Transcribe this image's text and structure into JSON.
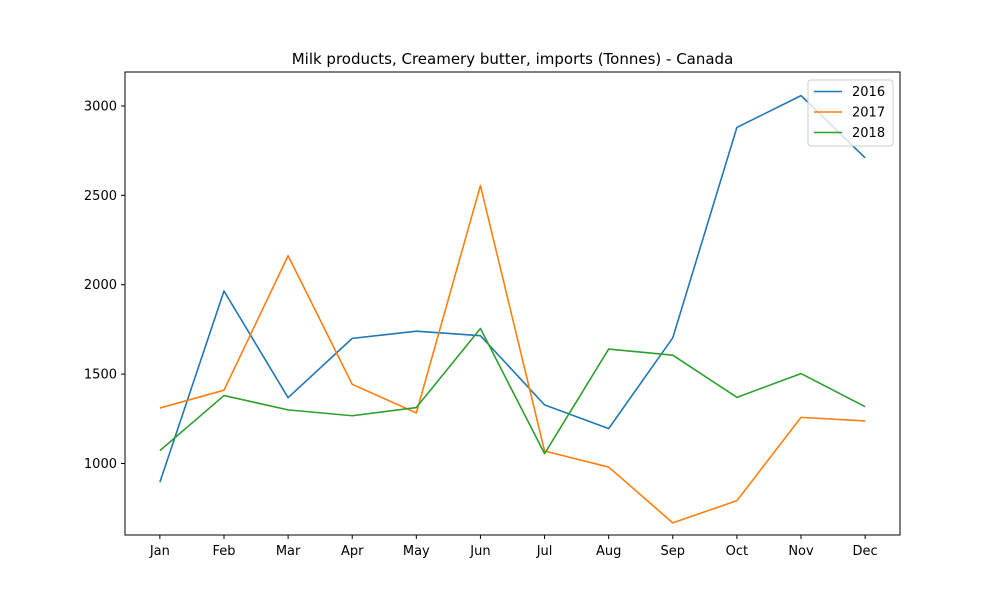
{
  "chart_data": {
    "type": "line",
    "title": "Milk products, Creamery butter, imports (Tonnes) - Canada",
    "xlabel": "",
    "ylabel": "",
    "categories": [
      "Jan",
      "Feb",
      "Mar",
      "Apr",
      "May",
      "Jun",
      "Jul",
      "Aug",
      "Sep",
      "Oct",
      "Nov",
      "Dec"
    ],
    "yticks": [
      1000,
      1500,
      2000,
      2500,
      3000
    ],
    "ylim": [
      600,
      3190
    ],
    "grid": false,
    "legend_position": "top-right",
    "series": [
      {
        "name": "2016",
        "color": "#1f77b4",
        "values": [
          895,
          1965,
          1368,
          1700,
          1740,
          1715,
          1328,
          1195,
          1703,
          2880,
          3058,
          2710
        ]
      },
      {
        "name": "2017",
        "color": "#ff7f0e",
        "values": [
          1310,
          1410,
          2162,
          1443,
          1283,
          2555,
          1070,
          980,
          668,
          792,
          1258,
          1238
        ]
      },
      {
        "name": "2018",
        "color": "#2ca02c",
        "values": [
          1072,
          1380,
          1300,
          1267,
          1313,
          1755,
          1055,
          1640,
          1606,
          1370,
          1503,
          1318
        ]
      }
    ]
  }
}
